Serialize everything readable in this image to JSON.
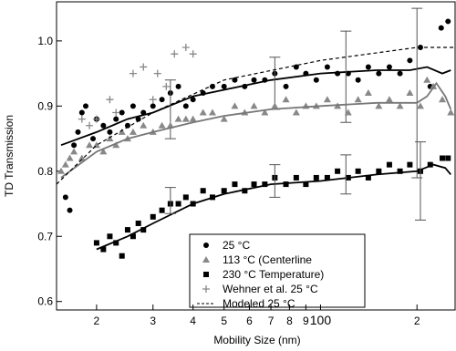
{
  "chart_data": {
    "type": "scatter",
    "xlabel": "Mobility Size (nm)",
    "ylabel": "TD Transmission",
    "xscale": "log",
    "xlim": [
      15,
      263
    ],
    "ylim": [
      0.587,
      1.06
    ],
    "xticks": [
      {
        "value": 20,
        "label": "2"
      },
      {
        "value": 30,
        "label": "3"
      },
      {
        "value": 40,
        "label": "4"
      },
      {
        "value": 50,
        "label": "5"
      },
      {
        "value": 60,
        "label": "6"
      },
      {
        "value": 70,
        "label": "7"
      },
      {
        "value": 80,
        "label": "8"
      },
      {
        "value": 90,
        "label": "9"
      },
      100,
      {
        "value": 200,
        "label": "2"
      }
    ],
    "yticks": [
      0.6,
      0.7,
      0.8,
      0.9,
      {
        "value": 1,
        "label": "1.0"
      }
    ],
    "series": [
      {
        "name": "25 °C",
        "marker": "circle",
        "color": "#000000",
        "x": [
          16,
          16.5,
          17,
          17.5,
          18,
          18.5,
          19.5,
          20,
          21,
          22,
          23,
          24,
          25,
          26,
          27,
          28,
          30,
          32,
          34,
          36,
          38,
          40,
          43,
          46,
          50,
          54,
          58,
          62,
          67,
          72,
          78,
          84,
          90,
          97,
          105,
          113,
          122,
          131,
          141,
          152,
          164,
          177,
          190,
          205,
          220,
          238,
          250
        ],
        "values": [
          0.76,
          0.74,
          0.84,
          0.86,
          0.89,
          0.9,
          0.85,
          0.88,
          0.87,
          0.86,
          0.88,
          0.89,
          0.87,
          0.9,
          0.88,
          0.89,
          0.9,
          0.91,
          0.92,
          0.93,
          0.9,
          0.91,
          0.92,
          0.93,
          0.93,
          0.94,
          0.93,
          0.94,
          0.94,
          0.95,
          0.93,
          0.96,
          0.95,
          0.94,
          0.96,
          0.95,
          0.95,
          0.94,
          0.96,
          0.95,
          0.96,
          0.95,
          0.97,
          0.99,
          0.93,
          1.02,
          1.03
        ],
        "fit": {
          "x": [
            15.5,
            20,
            25,
            30,
            40,
            50,
            70,
            100,
            150,
            190,
            215,
            240,
            255
          ],
          "values": [
            0.84,
            0.86,
            0.88,
            0.89,
            0.915,
            0.925,
            0.94,
            0.95,
            0.955,
            0.955,
            0.96,
            0.95,
            0.955
          ]
        },
        "error_bars": [
          {
            "x": 34,
            "value": 0.895,
            "error": 0.045
          },
          {
            "x": 72,
            "value": 0.935,
            "error": 0.04
          },
          {
            "x": 120,
            "value": 0.945,
            "error": 0.07
          },
          {
            "x": 200,
            "value": 0.92,
            "error": 0.13
          }
        ]
      },
      {
        "name": "113 °C  (Centerline",
        "marker": "triangle",
        "color": "#888888",
        "x": [
          15.5,
          16,
          16.5,
          17,
          18,
          19,
          20,
          21,
          22,
          23,
          24,
          25,
          26,
          28,
          30,
          32,
          34,
          36,
          38,
          40,
          43,
          46,
          50,
          54,
          58,
          62,
          67,
          72,
          78,
          84,
          90,
          97,
          105,
          113,
          122,
          131,
          141,
          152,
          164,
          177,
          190,
          205,
          215,
          225,
          240,
          255
        ],
        "values": [
          0.8,
          0.81,
          0.82,
          0.83,
          0.82,
          0.84,
          0.84,
          0.83,
          0.85,
          0.84,
          0.86,
          0.85,
          0.86,
          0.87,
          0.86,
          0.87,
          0.87,
          0.88,
          0.88,
          0.88,
          0.89,
          0.89,
          0.88,
          0.9,
          0.89,
          0.9,
          0.89,
          0.9,
          0.91,
          0.89,
          0.9,
          0.9,
          0.91,
          0.9,
          0.89,
          0.91,
          0.92,
          0.9,
          0.91,
          0.9,
          0.92,
          0.9,
          0.94,
          0.93,
          0.91,
          0.89
        ],
        "fit": {
          "x": [
            15.5,
            20,
            25,
            30,
            40,
            50,
            70,
            100,
            150,
            200,
            215,
            230,
            245,
            255
          ],
          "values": [
            0.79,
            0.83,
            0.85,
            0.86,
            0.875,
            0.885,
            0.895,
            0.9,
            0.905,
            0.905,
            0.915,
            0.935,
            0.915,
            0.895
          ]
        }
      },
      {
        "name": "230 °C  Temperature)",
        "marker": "square",
        "color": "#000000",
        "x": [
          20,
          21,
          22,
          23,
          24,
          25,
          26,
          27,
          28,
          30,
          32,
          34,
          36,
          38,
          40,
          43,
          46,
          50,
          54,
          58,
          62,
          67,
          72,
          78,
          84,
          90,
          97,
          105,
          113,
          122,
          131,
          141,
          152,
          164,
          177,
          190,
          205,
          220,
          240,
          250
        ],
        "values": [
          0.69,
          0.68,
          0.7,
          0.69,
          0.67,
          0.71,
          0.7,
          0.72,
          0.71,
          0.73,
          0.74,
          0.75,
          0.75,
          0.76,
          0.75,
          0.77,
          0.76,
          0.77,
          0.78,
          0.77,
          0.78,
          0.78,
          0.79,
          0.78,
          0.79,
          0.78,
          0.79,
          0.79,
          0.8,
          0.79,
          0.8,
          0.79,
          0.8,
          0.81,
          0.8,
          0.81,
          0.8,
          0.81,
          0.82,
          0.82
        ],
        "fit": {
          "x": [
            20,
            25,
            30,
            40,
            50,
            70,
            100,
            150,
            200,
            225,
            245,
            255
          ],
          "values": [
            0.68,
            0.7,
            0.72,
            0.75,
            0.765,
            0.78,
            0.785,
            0.795,
            0.8,
            0.81,
            0.805,
            0.795
          ]
        },
        "error_bars": [
          {
            "x": 34,
            "value": 0.755,
            "error": 0.02
          },
          {
            "x": 72,
            "value": 0.785,
            "error": 0.025
          },
          {
            "x": 120,
            "value": 0.795,
            "error": 0.03
          },
          {
            "x": 205,
            "value": 0.785,
            "error": 0.06
          }
        ]
      },
      {
        "name": "Wehner et al. 25 °C",
        "marker": "plus",
        "color": "#888888",
        "x": [
          18,
          19,
          20,
          22,
          23,
          26,
          28,
          30,
          31,
          33,
          35,
          38,
          40
        ],
        "values": [
          0.88,
          0.87,
          0.88,
          0.91,
          0.89,
          0.95,
          0.96,
          0.91,
          0.95,
          0.93,
          0.98,
          0.99,
          0.98
        ]
      },
      {
        "name": "Modeled 25 °C",
        "marker": "dashed",
        "color": "#000000",
        "x": [
          15,
          20,
          30,
          50,
          100,
          200,
          263
        ],
        "values": [
          0.78,
          0.84,
          0.89,
          0.94,
          0.97,
          0.99,
          0.99
        ]
      }
    ]
  }
}
